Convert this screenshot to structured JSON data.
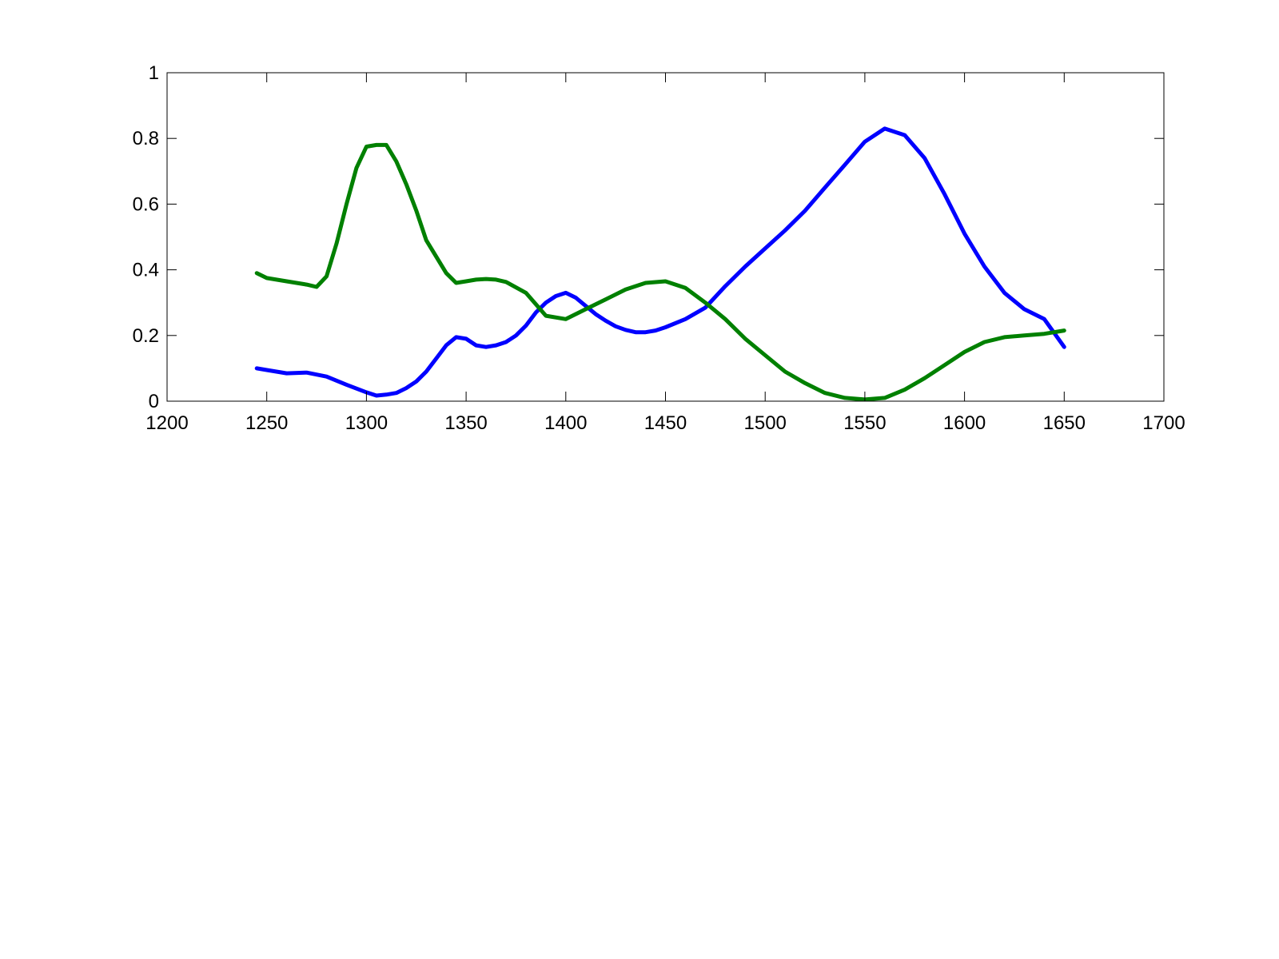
{
  "chart_data": {
    "type": "line",
    "title": "",
    "xlabel": "",
    "ylabel": "",
    "xlim": [
      1200,
      1700
    ],
    "ylim": [
      0,
      1
    ],
    "grid": false,
    "x_ticks": [
      "1200",
      "1250",
      "1300",
      "1350",
      "1400",
      "1450",
      "1500",
      "1550",
      "1600",
      "1650",
      "1700"
    ],
    "y_ticks": [
      "0",
      "0.2",
      "0.4",
      "0.6",
      "0.8",
      "1"
    ],
    "series": [
      {
        "color": "#0000ff",
        "x": [
          1245,
          1250,
          1260,
          1270,
          1280,
          1290,
          1300,
          1305,
          1310,
          1315,
          1320,
          1325,
          1330,
          1335,
          1340,
          1345,
          1350,
          1355,
          1360,
          1365,
          1370,
          1375,
          1380,
          1385,
          1390,
          1395,
          1400,
          1405,
          1410,
          1415,
          1420,
          1425,
          1430,
          1435,
          1440,
          1445,
          1450,
          1460,
          1470,
          1480,
          1490,
          1500,
          1510,
          1520,
          1530,
          1540,
          1550,
          1560,
          1570,
          1580,
          1590,
          1600,
          1610,
          1620,
          1630,
          1640,
          1650
        ],
        "y": [
          0.1,
          0.095,
          0.085,
          0.087,
          0.075,
          0.05,
          0.027,
          0.017,
          0.02,
          0.025,
          0.04,
          0.06,
          0.09,
          0.13,
          0.17,
          0.195,
          0.19,
          0.17,
          0.165,
          0.17,
          0.18,
          0.2,
          0.23,
          0.27,
          0.3,
          0.32,
          0.33,
          0.315,
          0.29,
          0.265,
          0.245,
          0.228,
          0.217,
          0.21,
          0.21,
          0.215,
          0.225,
          0.25,
          0.285,
          0.35,
          0.41,
          0.465,
          0.52,
          0.58,
          0.65,
          0.72,
          0.79,
          0.83,
          0.81,
          0.74,
          0.63,
          0.51,
          0.41,
          0.33,
          0.28,
          0.25,
          0.165
        ]
      },
      {
        "color": "#008000",
        "x": [
          1245,
          1250,
          1260,
          1270,
          1275,
          1280,
          1285,
          1290,
          1295,
          1300,
          1305,
          1310,
          1315,
          1320,
          1325,
          1330,
          1340,
          1345,
          1350,
          1355,
          1360,
          1365,
          1370,
          1380,
          1390,
          1400,
          1410,
          1420,
          1430,
          1440,
          1450,
          1460,
          1470,
          1480,
          1490,
          1500,
          1510,
          1520,
          1530,
          1540,
          1550,
          1560,
          1570,
          1580,
          1590,
          1600,
          1610,
          1620,
          1630,
          1640,
          1650
        ],
        "y": [
          0.39,
          0.375,
          0.365,
          0.355,
          0.348,
          0.38,
          0.48,
          0.6,
          0.71,
          0.775,
          0.78,
          0.78,
          0.73,
          0.66,
          0.58,
          0.49,
          0.39,
          0.36,
          0.365,
          0.37,
          0.372,
          0.37,
          0.363,
          0.33,
          0.26,
          0.25,
          0.28,
          0.31,
          0.34,
          0.36,
          0.365,
          0.345,
          0.3,
          0.25,
          0.19,
          0.14,
          0.09,
          0.055,
          0.025,
          0.01,
          0.005,
          0.01,
          0.035,
          0.07,
          0.11,
          0.15,
          0.18,
          0.195,
          0.2,
          0.205,
          0.215
        ]
      }
    ]
  }
}
